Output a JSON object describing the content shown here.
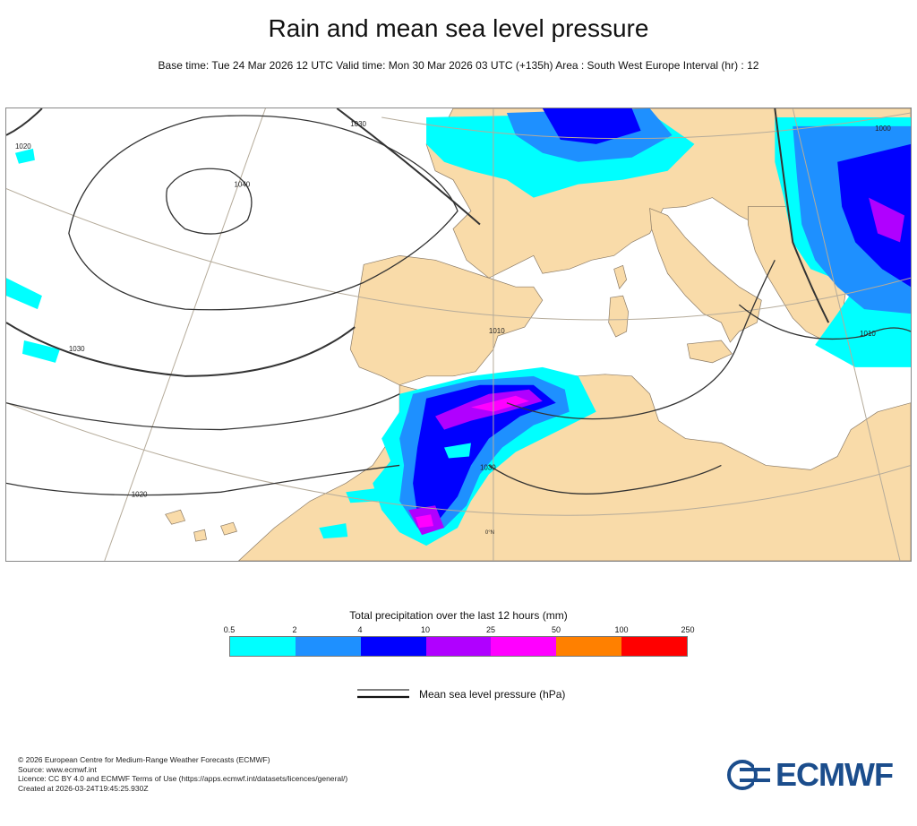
{
  "header": {
    "title": "Rain and mean sea level pressure",
    "subtitle": "Base time: Tue 24 Mar 2026 12 UTC Valid time: Mon 30 Mar 2026 03 UTC (+135h) Area : South West Europe Interval (hr) : 12"
  },
  "map": {
    "isobar_labels": [
      "1030",
      "1020",
      "1040",
      "1030",
      "1020",
      "1030",
      "1010",
      "1000",
      "1010"
    ],
    "graticule_label": "0°N",
    "colors": {
      "sea": "#ffffff",
      "land": "#f9dba9",
      "isobar": "#333333",
      "graticule": "#b5ab9a"
    }
  },
  "legend": {
    "title": "Total precipitation over the last 12 hours (mm)",
    "ticks": [
      "0.5",
      "2",
      "4",
      "10",
      "25",
      "50",
      "100",
      "250"
    ],
    "colors": [
      "#00ffff",
      "#1e90ff",
      "#0000ff",
      "#b000ff",
      "#ff00ff",
      "#ff8000",
      "#ff0000"
    ],
    "mslp_label": "Mean sea level pressure (hPa)"
  },
  "footer": {
    "lines": [
      "© 2026 European Centre for Medium-Range Weather Forecasts (ECMWF)",
      "Source: www.ecmwf.int",
      "Licence: CC BY 4.0 and ECMWF Terms of Use (https://apps.ecmwf.int/datasets/licences/general/)",
      "Created at 2026-03-24T19:45:25.930Z"
    ]
  },
  "logo": {
    "text": "ECMWF"
  }
}
